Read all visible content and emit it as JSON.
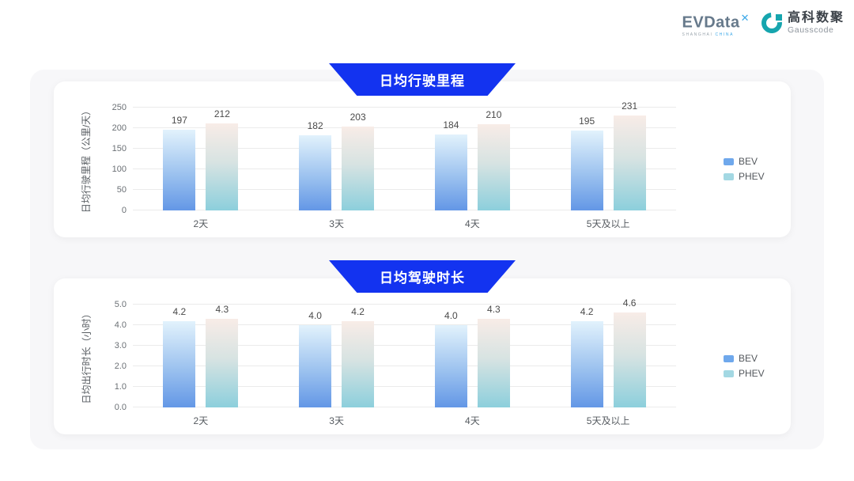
{
  "header": {
    "evdata": {
      "name": "EVData",
      "mark": "✕",
      "subtext_gray": "SHANGHAI ",
      "subtext_blue": "CHINA"
    },
    "gausscode": {
      "cn": "高科数聚",
      "en": "Gausscode"
    }
  },
  "legend": {
    "items": [
      {
        "label": "BEV",
        "color": "#6fa8ec"
      },
      {
        "label": "PHEV",
        "color": "#a3d8e3"
      }
    ]
  },
  "colors": {
    "banner_blue": "#1333f0",
    "bev_gradient_top": "#e2f2fc",
    "bev_gradient_bottom": "#6397e6",
    "phev_gradient_top": "#f8ece7",
    "phev_gradient_bottom": "#8ccfdc",
    "panel_background": "#f7f7f9",
    "gausscode_teal": "#16a5ae",
    "evdata_slate": "#66798b",
    "evdata_blue": "#3da9e8"
  },
  "chart_data": [
    {
      "type": "bar",
      "title": "日均行驶里程",
      "ylabel": "日均行驶里程（公里/天）",
      "categories": [
        "2天",
        "3天",
        "4天",
        "5天及以上"
      ],
      "series": [
        {
          "name": "BEV",
          "values": [
            197,
            182,
            184,
            195
          ],
          "labels": [
            "197",
            "182",
            "184",
            "195"
          ]
        },
        {
          "name": "PHEV",
          "values": [
            212,
            203,
            210,
            231
          ],
          "labels": [
            "212",
            "203",
            "210",
            "231"
          ]
        }
      ],
      "ylim": [
        0,
        250
      ],
      "yticks": [
        0,
        50,
        100,
        150,
        200,
        250
      ],
      "ytick_labels": [
        "0",
        "50",
        "100",
        "150",
        "200",
        "250"
      ],
      "grid": true,
      "legend_position": "right"
    },
    {
      "type": "bar",
      "title": "日均驾驶时长",
      "ylabel": "日均出行时长（小时）",
      "categories": [
        "2天",
        "3天",
        "4天",
        "5天及以上"
      ],
      "series": [
        {
          "name": "BEV",
          "values": [
            4.2,
            4.0,
            4.0,
            4.2
          ],
          "labels": [
            "4.2",
            "4.0",
            "4.0",
            "4.2"
          ]
        },
        {
          "name": "PHEV",
          "values": [
            4.3,
            4.2,
            4.3,
            4.6
          ],
          "labels": [
            "4.3",
            "4.2",
            "4.3",
            "4.6"
          ]
        }
      ],
      "ylim": [
        0,
        5
      ],
      "yticks": [
        0,
        1,
        2,
        3,
        4,
        5
      ],
      "ytick_labels": [
        "0.0",
        "1.0",
        "2.0",
        "3.0",
        "4.0",
        "5.0"
      ],
      "grid": true,
      "legend_position": "right"
    }
  ]
}
